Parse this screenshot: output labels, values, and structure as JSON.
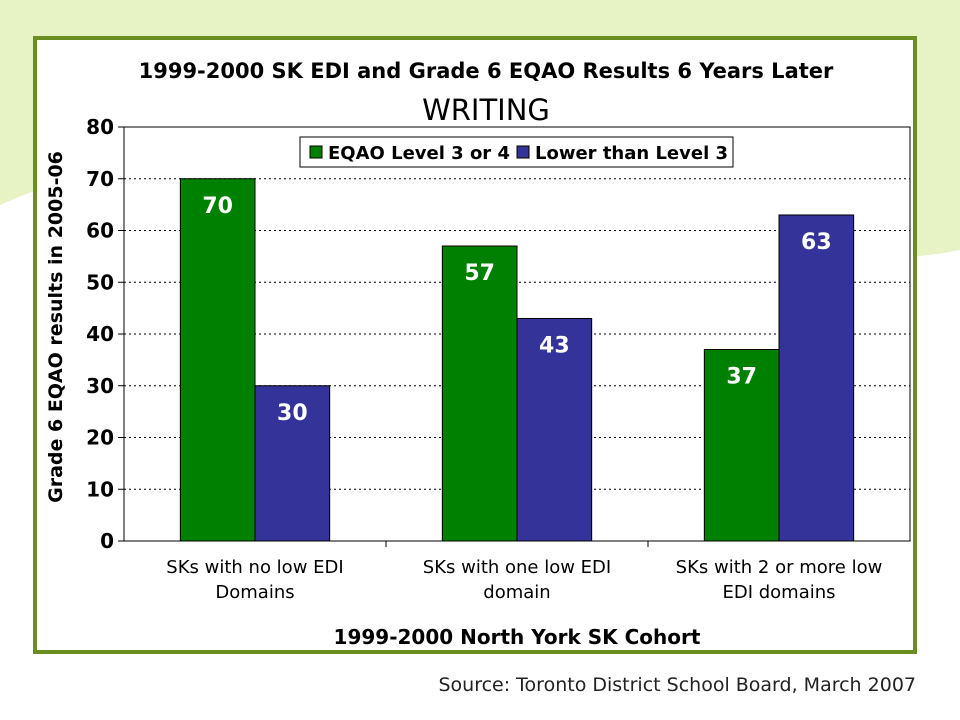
{
  "footer": {
    "source": "Source: Toronto District School Board, March 2007"
  },
  "colors": {
    "series_green": "#008000",
    "series_blue": "#333399",
    "frame": "#6b8e23",
    "background_swoosh": "#e7f3c4"
  },
  "chart_data": {
    "type": "bar",
    "title": "1999-2000 SK EDI and Grade 6 EQAO Results 6 Years Later",
    "subtitle": "WRITING",
    "xlabel": "1999-2000 North York SK Cohort",
    "ylabel": "Grade 6 EQAO results in 2005-06",
    "ylim": [
      0,
      80
    ],
    "yticks": [
      0,
      10,
      20,
      30,
      40,
      50,
      60,
      70,
      80
    ],
    "categories": [
      [
        "SKs with no low EDI",
        "Domains"
      ],
      [
        "SKs with one low EDI",
        "domain"
      ],
      [
        "SKs with 2 or more low",
        "EDI domains"
      ]
    ],
    "series": [
      {
        "name": "EQAO Level 3 or 4",
        "values": [
          70,
          57,
          37
        ],
        "color": "#008000"
      },
      {
        "name": "Lower than Level 3",
        "values": [
          30,
          43,
          63
        ],
        "color": "#333399"
      }
    ],
    "grid": true,
    "legend": "top-right",
    "data_labels": true
  }
}
